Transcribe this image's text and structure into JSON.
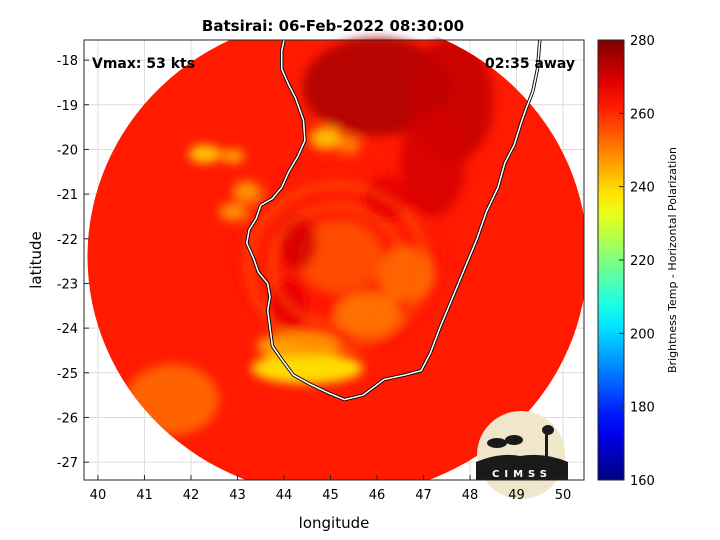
{
  "chart_data": {
    "type": "heatmap",
    "title": "Batsirai: 06-Feb-2022 08:30:00",
    "xlabel": "longitude",
    "ylabel": "latitude",
    "xlim": [
      39.7,
      50.45
    ],
    "ylim": [
      -27.4,
      -17.55
    ],
    "x_ticks": [
      40,
      41,
      42,
      43,
      44,
      45,
      46,
      47,
      48,
      49,
      50
    ],
    "y_ticks": [
      -18,
      -19,
      -20,
      -21,
      -22,
      -23,
      -24,
      -25,
      -26,
      -27
    ],
    "grid": true,
    "colorbar": {
      "label": "Brightness Temp - Horizontal Polarization",
      "range": [
        160,
        280
      ],
      "ticks": [
        160,
        180,
        200,
        220,
        240,
        260,
        280
      ],
      "colormap": "jet"
    },
    "annotations": {
      "vmax": "Vmax: 53 kts",
      "time_away": "02:35 away"
    },
    "swath": {
      "center_lon": 45.15,
      "center_lat": -22.4,
      "background_value": 262
    },
    "coastline": [
      [
        44.0,
        -17.55
      ],
      [
        43.95,
        -17.8
      ],
      [
        43.95,
        -18.2
      ],
      [
        44.1,
        -18.55
      ],
      [
        44.25,
        -18.85
      ],
      [
        44.42,
        -19.35
      ],
      [
        44.45,
        -19.8
      ],
      [
        44.3,
        -20.15
      ],
      [
        44.1,
        -20.5
      ],
      [
        43.95,
        -20.85
      ],
      [
        43.75,
        -21.1
      ],
      [
        43.5,
        -21.25
      ],
      [
        43.4,
        -21.55
      ],
      [
        43.25,
        -21.8
      ],
      [
        43.2,
        -22.1
      ],
      [
        43.35,
        -22.45
      ],
      [
        43.45,
        -22.75
      ],
      [
        43.65,
        -23.0
      ],
      [
        43.7,
        -23.3
      ],
      [
        43.65,
        -23.6
      ],
      [
        43.7,
        -24.0
      ],
      [
        43.75,
        -24.4
      ],
      [
        43.95,
        -24.7
      ],
      [
        44.2,
        -25.05
      ],
      [
        44.55,
        -25.25
      ],
      [
        44.95,
        -25.45
      ],
      [
        45.3,
        -25.6
      ],
      [
        45.7,
        -25.5
      ],
      [
        46.15,
        -25.15
      ],
      [
        46.6,
        -25.05
      ],
      [
        46.95,
        -24.95
      ],
      [
        47.15,
        -24.55
      ],
      [
        47.35,
        -24.0
      ],
      [
        47.55,
        -23.5
      ],
      [
        47.75,
        -23.0
      ],
      [
        47.95,
        -22.5
      ],
      [
        48.15,
        -22.0
      ],
      [
        48.35,
        -21.4
      ],
      [
        48.6,
        -20.85
      ],
      [
        48.75,
        -20.3
      ],
      [
        48.95,
        -19.9
      ],
      [
        49.1,
        -19.4
      ],
      [
        49.2,
        -19.1
      ],
      [
        49.35,
        -18.7
      ],
      [
        49.45,
        -18.2
      ],
      [
        49.5,
        -17.55
      ]
    ],
    "features": [
      {
        "lon": 45.2,
        "lat": -22.4,
        "value": 262
      },
      {
        "lon": 45.2,
        "lat": -22.4,
        "value": 255
      },
      {
        "lon": 44.5,
        "lat": -24.9,
        "value": 235
      },
      {
        "lon": 44.3,
        "lat": -24.4,
        "value": 244
      },
      {
        "lon": 42.3,
        "lat": -20.1,
        "value": 238
      },
      {
        "lon": 42.9,
        "lat": -20.15,
        "value": 242
      },
      {
        "lon": 44.9,
        "lat": -19.75,
        "value": 240
      },
      {
        "lon": 45.4,
        "lat": -19.9,
        "value": 248
      },
      {
        "lon": 43.2,
        "lat": -20.95,
        "value": 246
      },
      {
        "lon": 42.9,
        "lat": -21.4,
        "value": 246
      },
      {
        "lon": 45.8,
        "lat": -23.7,
        "value": 250
      },
      {
        "lon": 46.6,
        "lat": -22.8,
        "value": 252
      },
      {
        "lon": 41.6,
        "lat": -25.6,
        "value": 252
      },
      {
        "lon": 46.0,
        "lat": -18.6,
        "value": 275
      },
      {
        "lon": 47.6,
        "lat": -18.9,
        "value": 272
      },
      {
        "lon": 47.2,
        "lat": -20.3,
        "value": 270
      },
      {
        "lon": 44.3,
        "lat": -22.1,
        "value": 270
      },
      {
        "lon": 46.2,
        "lat": -21.1,
        "value": 268
      },
      {
        "lon": 44.1,
        "lat": -23.5,
        "value": 268
      }
    ],
    "logo_text": "CIMSS"
  }
}
